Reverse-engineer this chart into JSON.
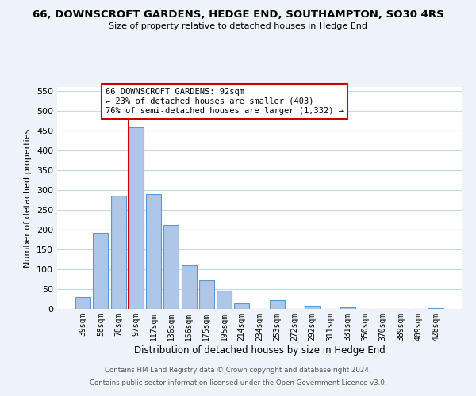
{
  "title": "66, DOWNSCROFT GARDENS, HEDGE END, SOUTHAMPTON, SO30 4RS",
  "subtitle": "Size of property relative to detached houses in Hedge End",
  "xlabel": "Distribution of detached houses by size in Hedge End",
  "ylabel": "Number of detached properties",
  "bar_labels": [
    "39sqm",
    "58sqm",
    "78sqm",
    "97sqm",
    "117sqm",
    "136sqm",
    "156sqm",
    "175sqm",
    "195sqm",
    "214sqm",
    "234sqm",
    "253sqm",
    "272sqm",
    "292sqm",
    "311sqm",
    "331sqm",
    "350sqm",
    "370sqm",
    "389sqm",
    "409sqm",
    "428sqm"
  ],
  "bar_values": [
    30,
    192,
    287,
    460,
    291,
    212,
    110,
    73,
    46,
    14,
    0,
    22,
    0,
    9,
    0,
    5,
    0,
    0,
    0,
    0,
    3
  ],
  "bar_color": "#aec6e8",
  "bar_edgecolor": "#5b9bd5",
  "vline_index": 3,
  "vline_color": "#cc0000",
  "ylim": [
    0,
    560
  ],
  "yticks": [
    0,
    50,
    100,
    150,
    200,
    250,
    300,
    350,
    400,
    450,
    500,
    550
  ],
  "annotation_title": "66 DOWNSCROFT GARDENS: 92sqm",
  "annotation_line1": "← 23% of detached houses are smaller (403)",
  "annotation_line2": "76% of semi-detached houses are larger (1,332) →",
  "annotation_box_color": "#ffffff",
  "annotation_box_edgecolor": "#cc0000",
  "footer1": "Contains HM Land Registry data © Crown copyright and database right 2024.",
  "footer2": "Contains public sector information licensed under the Open Government Licence v3.0.",
  "background_color": "#eef2f9",
  "plot_background": "#ffffff",
  "grid_color": "#c8d8ec"
}
